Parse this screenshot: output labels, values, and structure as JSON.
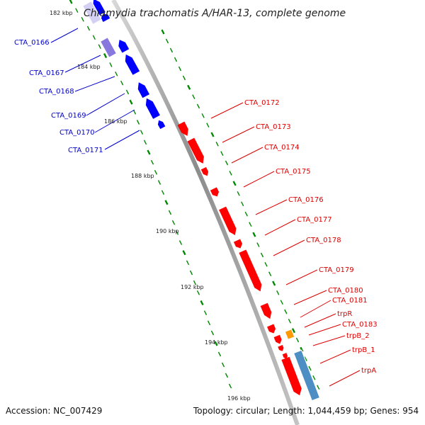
{
  "title": "Chlamydia trachomatis A/HAR-13, complete genome",
  "footer": {
    "accession": "Accession: NC_007429",
    "topology": "Topology: circular; Length: 1,044,459 bp; Genes: 954"
  },
  "scale_labels": [
    "182 kbp",
    "184 kbp",
    "186 kbp",
    "188 kbp",
    "190 kbp",
    "192 kbp",
    "194 kbp",
    "196 kbp"
  ],
  "left_genes": [
    "CTA_0166",
    "CTA_0167",
    "CTA_0168",
    "CTA_0169",
    "CTA_0170",
    "CTA_0171"
  ],
  "right_genes": [
    "CTA_0172",
    "CTA_0173",
    "CTA_0174",
    "CTA_0175",
    "CTA_0176",
    "CTA_0177",
    "CTA_0178",
    "CTA_0179",
    "CTA_0180",
    "CTA_0181",
    "trpR",
    "CTA_0183",
    "trpB_2",
    "trpB_1",
    "trpA"
  ],
  "colors": {
    "minus_strand": "#0000ff",
    "minus_strand_label": "#0000cc",
    "plus_strand": "#ff0000",
    "plus_strand_label": "#dd0000",
    "highlight_violet": "#8878dd",
    "highlight_orange": "#ff9900",
    "highlight_steelblue": "#4d8fc4",
    "backbone": "#999999",
    "ticks": "#008800"
  }
}
